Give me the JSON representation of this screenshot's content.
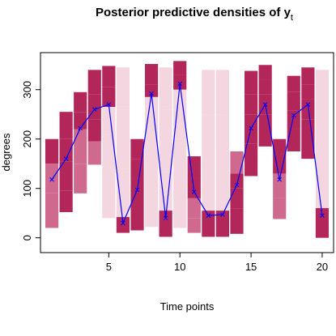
{
  "chart_data": {
    "type": "line",
    "title": "Posterior predictive densities of y",
    "title_subscript": "t",
    "xlabel": "Time points",
    "ylabel": "degrees",
    "xlim": [
      0.2,
      20.8
    ],
    "ylim": [
      -30,
      375
    ],
    "xticks": [
      5,
      10,
      15,
      20
    ],
    "yticks": [
      0,
      100,
      200,
      300
    ],
    "grid": false,
    "legend": "none",
    "colors": {
      "line": "#0000ff",
      "band_dark": "#b2265a",
      "band_mid": "#cf6a8e",
      "band_light": "#f3d6df"
    },
    "x": [
      1,
      2,
      3,
      4,
      5,
      6,
      7,
      8,
      9,
      10,
      11,
      12,
      13,
      14,
      15,
      16,
      17,
      18,
      19,
      20
    ],
    "series": [
      {
        "values": [
          118,
          160,
          222,
          260,
          270,
          30,
          97,
          292,
          40,
          312,
          93,
          45,
          47,
          107,
          222,
          270,
          118,
          248,
          270,
          45
        ]
      }
    ],
    "bands": [
      {
        "x": 1,
        "segments": [
          [
            150,
            200,
            "dark"
          ],
          [
            90,
            150,
            "mid"
          ],
          [
            20,
            90,
            "mid"
          ]
        ]
      },
      {
        "x": 2,
        "segments": [
          [
            200,
            255,
            "dark"
          ],
          [
            155,
            200,
            "dark"
          ],
          [
            95,
            155,
            "dark"
          ],
          [
            52,
            95,
            "dark"
          ]
        ]
      },
      {
        "x": 3,
        "segments": [
          [
            255,
            295,
            "dark"
          ],
          [
            220,
            255,
            "dark"
          ],
          [
            150,
            220,
            "mid"
          ],
          [
            90,
            150,
            "mid"
          ]
        ]
      },
      {
        "x": 4,
        "segments": [
          [
            290,
            340,
            "dark"
          ],
          [
            240,
            290,
            "dark"
          ],
          [
            195,
            240,
            "dark"
          ],
          [
            148,
            195,
            "mid"
          ]
        ]
      },
      {
        "x": 5,
        "segments": [
          [
            305,
            348,
            "dark"
          ],
          [
            265,
            305,
            "dark"
          ],
          [
            210,
            265,
            "light"
          ],
          [
            40,
            210,
            "light"
          ]
        ]
      },
      {
        "x": 6,
        "segments": [
          [
            260,
            345,
            "light"
          ],
          [
            140,
            260,
            "light"
          ],
          [
            42,
            140,
            "light"
          ],
          [
            10,
            42,
            "dark"
          ]
        ]
      },
      {
        "x": 7,
        "segments": [
          [
            160,
            200,
            "dark"
          ],
          [
            120,
            160,
            "dark"
          ],
          [
            70,
            120,
            "dark"
          ],
          [
            15,
            70,
            "dark"
          ]
        ]
      },
      {
        "x": 8,
        "segments": [
          [
            310,
            352,
            "dark"
          ],
          [
            285,
            310,
            "dark"
          ],
          [
            180,
            285,
            "light"
          ],
          [
            22,
            180,
            "light"
          ]
        ]
      },
      {
        "x": 9,
        "segments": [
          [
            260,
            345,
            "light"
          ],
          [
            140,
            260,
            "light"
          ],
          [
            55,
            140,
            "light"
          ],
          [
            2,
            55,
            "dark"
          ]
        ]
      },
      {
        "x": 10,
        "segments": [
          [
            330,
            358,
            "dark"
          ],
          [
            300,
            330,
            "dark"
          ],
          [
            200,
            300,
            "light"
          ],
          [
            20,
            200,
            "light"
          ]
        ]
      },
      {
        "x": 11,
        "segments": [
          [
            120,
            165,
            "dark"
          ],
          [
            80,
            120,
            "dark"
          ],
          [
            40,
            80,
            "mid"
          ],
          [
            10,
            40,
            "mid"
          ]
        ]
      },
      {
        "x": 12,
        "segments": [
          [
            250,
            340,
            "light"
          ],
          [
            130,
            250,
            "light"
          ],
          [
            55,
            130,
            "light"
          ],
          [
            2,
            55,
            "dark"
          ]
        ]
      },
      {
        "x": 13,
        "segments": [
          [
            250,
            340,
            "light"
          ],
          [
            130,
            250,
            "light"
          ],
          [
            55,
            130,
            "light"
          ],
          [
            2,
            55,
            "dark"
          ]
        ]
      },
      {
        "x": 14,
        "segments": [
          [
            130,
            175,
            "mid"
          ],
          [
            100,
            130,
            "dark"
          ],
          [
            60,
            100,
            "dark"
          ],
          [
            8,
            60,
            "dark"
          ]
        ]
      },
      {
        "x": 15,
        "segments": [
          [
            290,
            338,
            "dark"
          ],
          [
            250,
            290,
            "dark"
          ],
          [
            190,
            250,
            "dark"
          ],
          [
            125,
            190,
            "dark"
          ]
        ]
      },
      {
        "x": 16,
        "segments": [
          [
            320,
            350,
            "dark"
          ],
          [
            290,
            320,
            "dark"
          ],
          [
            250,
            290,
            "dark"
          ],
          [
            185,
            250,
            "dark"
          ]
        ]
      },
      {
        "x": 17,
        "segments": [
          [
            170,
            200,
            "dark"
          ],
          [
            130,
            170,
            "dark"
          ],
          [
            80,
            130,
            "mid"
          ],
          [
            38,
            80,
            "mid"
          ]
        ]
      },
      {
        "x": 18,
        "segments": [
          [
            295,
            328,
            "dark"
          ],
          [
            258,
            295,
            "dark"
          ],
          [
            220,
            258,
            "dark"
          ],
          [
            175,
            220,
            "dark"
          ]
        ]
      },
      {
        "x": 19,
        "segments": [
          [
            310,
            345,
            "dark"
          ],
          [
            280,
            310,
            "dark"
          ],
          [
            240,
            280,
            "dark"
          ],
          [
            160,
            240,
            "dark"
          ]
        ]
      },
      {
        "x": 20,
        "segments": [
          [
            230,
            340,
            "light"
          ],
          [
            130,
            230,
            "light"
          ],
          [
            60,
            130,
            "light"
          ],
          [
            0,
            60,
            "dark"
          ]
        ]
      }
    ]
  }
}
